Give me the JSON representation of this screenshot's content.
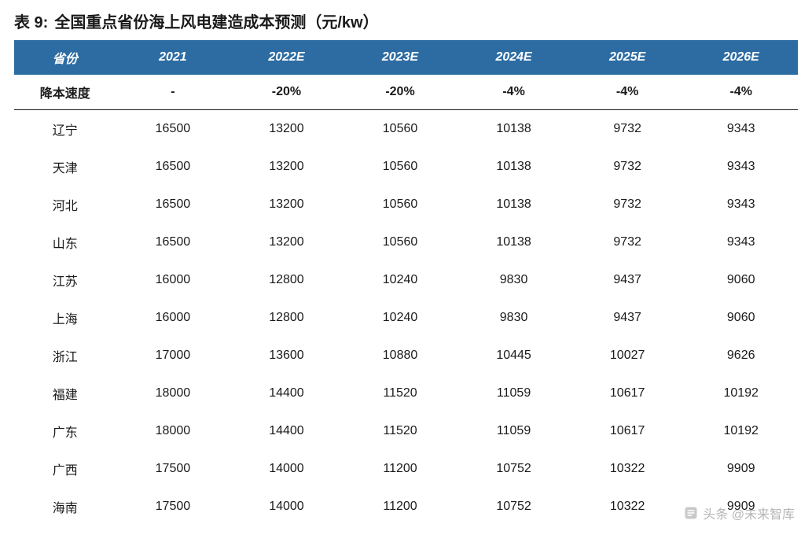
{
  "title": {
    "prefix": "表 9:",
    "text": "全国重点省份海上风电建造成本预测（元/kw）"
  },
  "table": {
    "type": "table",
    "header_bg": "#2d6ca2",
    "header_fg": "#ffffff",
    "border_color": "#1a1a1a",
    "text_color": "#1a1a1a",
    "background_color": "#ffffff",
    "title_fontsize": 20,
    "header_fontsize": 16,
    "cell_fontsize": 16,
    "columns": [
      "省份",
      "2021",
      "2022E",
      "2023E",
      "2024E",
      "2025E",
      "2026E"
    ],
    "rate_row": {
      "label": "降本速度",
      "values": [
        "-",
        "-20%",
        "-20%",
        "-4%",
        "-4%",
        "-4%"
      ]
    },
    "rows": [
      {
        "label": "辽宁",
        "values": [
          "16500",
          "13200",
          "10560",
          "10138",
          "9732",
          "9343"
        ]
      },
      {
        "label": "天津",
        "values": [
          "16500",
          "13200",
          "10560",
          "10138",
          "9732",
          "9343"
        ]
      },
      {
        "label": "河北",
        "values": [
          "16500",
          "13200",
          "10560",
          "10138",
          "9732",
          "9343"
        ]
      },
      {
        "label": "山东",
        "values": [
          "16500",
          "13200",
          "10560",
          "10138",
          "9732",
          "9343"
        ]
      },
      {
        "label": "江苏",
        "values": [
          "16000",
          "12800",
          "10240",
          "9830",
          "9437",
          "9060"
        ]
      },
      {
        "label": "上海",
        "values": [
          "16000",
          "12800",
          "10240",
          "9830",
          "9437",
          "9060"
        ]
      },
      {
        "label": "浙江",
        "values": [
          "17000",
          "13600",
          "10880",
          "10445",
          "10027",
          "9626"
        ]
      },
      {
        "label": "福建",
        "values": [
          "18000",
          "14400",
          "11520",
          "11059",
          "10617",
          "10192"
        ]
      },
      {
        "label": "广东",
        "values": [
          "18000",
          "14400",
          "11520",
          "11059",
          "10617",
          "10192"
        ]
      },
      {
        "label": "广西",
        "values": [
          "17500",
          "14000",
          "11200",
          "10752",
          "10322",
          "9909"
        ]
      },
      {
        "label": "海南",
        "values": [
          "17500",
          "14000",
          "11200",
          "10752",
          "10322",
          "9909"
        ]
      }
    ]
  },
  "watermark": {
    "text": "头条 @未来智库"
  }
}
